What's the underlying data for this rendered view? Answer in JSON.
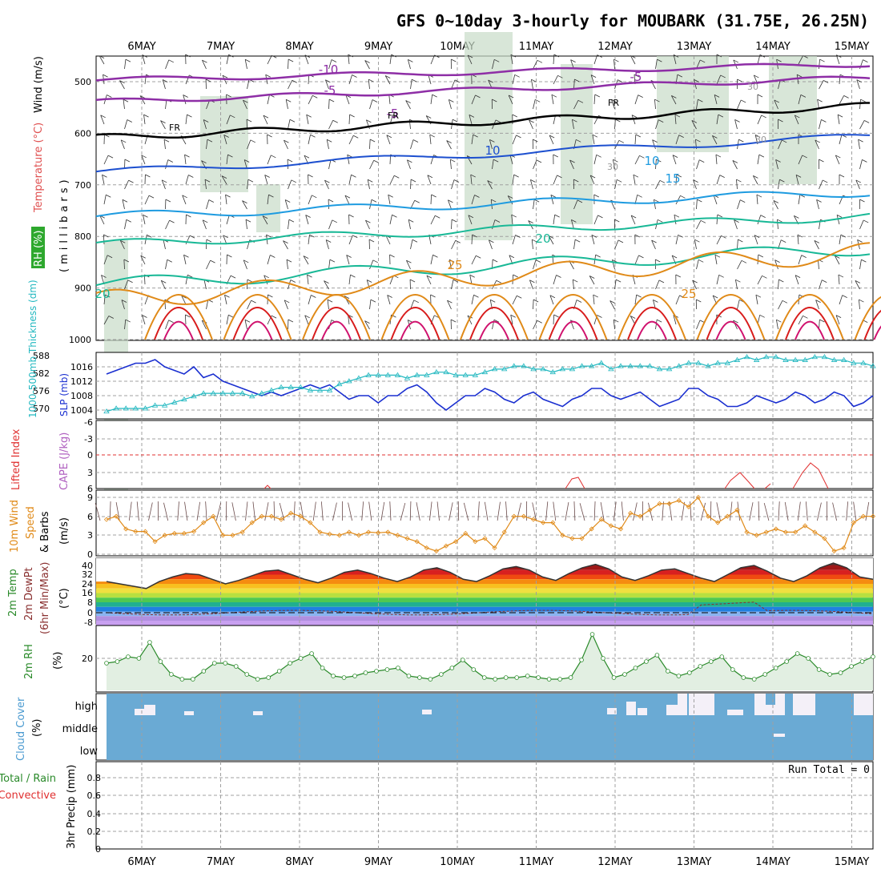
{
  "title": "GFS 0~10day 3-hourly for MOUBARK (31.75E, 26.25N)",
  "dates": [
    "6MAY",
    "7MAY",
    "8MAY",
    "9MAY",
    "10MAY",
    "11MAY",
    "12MAY",
    "13MAY",
    "14MAY",
    "15MAY"
  ],
  "colors": {
    "rh_fill": "#c8dcc8",
    "temp_purple": "#8e2ea6",
    "temp_black": "#000000",
    "temp_blue": "#1c4fcf",
    "temp_lightblue": "#1e9be0",
    "temp_teal": "#18b896",
    "temp_orange": "#e08a18",
    "temp_red": "#d81c1c",
    "temp_magenta": "#d0126e",
    "slp": "#1a2fd0",
    "thickness": "#22b8c0",
    "lifted_index": "#e03030",
    "wind_speed": "#e08a18",
    "rh2m": "#2a8a2a",
    "cloud": "#6aaad4",
    "grid": "#a0a0a0"
  },
  "panels": {
    "profile": {
      "ylabel_rh": "RH (%)",
      "ylabel_temp": "Temperature (°C)",
      "ylabel_wind": "Wind (m/s)",
      "ylabel_units": "(millibars)",
      "yticks": [
        "500",
        "600",
        "700",
        "800",
        "900",
        "1000"
      ],
      "contour_labels": [
        "-10",
        "-5",
        "FR",
        "-5",
        "10",
        "15",
        "20",
        "25",
        "20",
        "25",
        "-5",
        "FR",
        "FR",
        "10",
        "30",
        "30",
        "30"
      ]
    },
    "slp": {
      "ylabel_thick": "1000-500mb Thickness (dm)",
      "ylabel_slp": "SLP (mb)",
      "left_ticks": [
        "588",
        "582",
        "576",
        "570"
      ],
      "right_ticks": [
        "1016",
        "1012",
        "1008",
        "1004"
      ]
    },
    "cape": {
      "ylabel_li": "Lifted Index",
      "ylabel_cape": "CAPE (J/kg)",
      "yticks": [
        "-6",
        "-3",
        "0",
        "3",
        "6"
      ]
    },
    "wind10": {
      "ylabel_1": "10m Wind",
      "ylabel_2": "Speed",
      "ylabel_3": "& Barbs",
      "ylabel_units": "(m/s)",
      "yticks": [
        "9",
        "6",
        "3",
        "0"
      ]
    },
    "temp2m": {
      "ylabel_1": "2m Temp",
      "ylabel_2": "2m DewPt",
      "ylabel_3": "(6hr Min/Max)",
      "ylabel_units": "(°C)",
      "yticks": [
        "40",
        "32",
        "24",
        "16",
        "8",
        "0",
        "-8"
      ]
    },
    "rh2m": {
      "ylabel": "2m RH",
      "ylabel_units": "(%)",
      "yticks": [
        "20"
      ]
    },
    "cloud": {
      "ylabel": "Cloud Cover",
      "ylabel_units": "(%)",
      "levels": [
        "high",
        "middle",
        "low"
      ]
    },
    "precip": {
      "ylabel_1": "Total / Rain",
      "ylabel_2": "Convective",
      "ylabel_3": "3hr Precip (mm)",
      "yticks": [
        "0.8",
        "0.6",
        "0.4",
        "0.2",
        "0"
      ],
      "run_total": "Run Total = 0"
    }
  },
  "chart_data": [
    {
      "type": "line",
      "name": "slp",
      "x_step_hours": 3,
      "values": [
        1014,
        1015,
        1016,
        1017,
        1017,
        1018,
        1016,
        1015,
        1014,
        1016,
        1013,
        1014,
        1012,
        1011,
        1010,
        1009,
        1008,
        1009,
        1008,
        1009,
        1010,
        1011,
        1010,
        1011,
        1009,
        1007,
        1008,
        1008,
        1006,
        1008,
        1008,
        1010,
        1011,
        1009,
        1006,
        1004,
        1006,
        1008,
        1008,
        1010,
        1009,
        1007,
        1006,
        1008,
        1009,
        1007,
        1006,
        1005,
        1007,
        1008,
        1010,
        1010,
        1008,
        1007,
        1008,
        1009,
        1007,
        1005,
        1006,
        1007,
        1010,
        1010,
        1008,
        1007,
        1005,
        1005,
        1006,
        1008,
        1007,
        1006,
        1007,
        1009,
        1008,
        1006,
        1007,
        1009,
        1008,
        1005,
        1006,
        1008
      ]
    },
    {
      "type": "line",
      "name": "thickness",
      "x_step_hours": 3,
      "values": [
        569,
        570,
        570,
        570,
        570,
        571,
        571,
        572,
        573,
        574,
        575,
        575,
        575,
        575,
        575,
        574,
        575,
        576,
        577,
        577,
        577,
        576,
        576,
        576,
        578,
        579,
        580,
        581,
        581,
        581,
        581,
        580,
        581,
        581,
        582,
        582,
        581,
        581,
        581,
        582,
        583,
        583,
        584,
        584,
        583,
        583,
        582,
        583,
        583,
        584,
        584,
        585,
        583,
        584,
        584,
        584,
        584,
        583,
        583,
        584,
        585,
        585,
        584,
        585,
        585,
        586,
        587,
        586,
        587,
        587,
        586,
        586,
        586,
        587,
        587,
        586,
        586,
        585,
        585,
        584
      ]
    },
    {
      "type": "line",
      "name": "wind_speed",
      "x_step_hours": 3,
      "values": [
        5.5,
        6,
        4,
        3.6,
        3.6,
        2,
        3,
        3.3,
        3.3,
        3.6,
        5,
        6,
        3,
        3,
        3.5,
        5,
        6,
        6,
        5.5,
        6.5,
        6,
        5,
        3.5,
        3.2,
        3,
        3.5,
        3,
        3.5,
        3.4,
        3.5,
        3,
        2.5,
        2,
        1,
        0.5,
        1.3,
        2,
        3.3,
        2,
        2.5,
        1,
        3.5,
        6,
        6,
        5.5,
        5,
        5,
        3,
        2.5,
        2.5,
        4,
        5.5,
        4.5,
        4,
        6.5,
        6,
        7,
        8,
        8,
        8.5,
        7.5,
        9,
        6,
        5,
        6,
        7,
        3.5,
        3,
        3.5,
        4,
        3.5,
        3.5,
        4.5,
        3.5,
        2.5,
        0.5,
        1,
        5,
        6,
        6
      ]
    },
    {
      "type": "line",
      "name": "rh2m",
      "x_step_hours": 3,
      "values": [
        17,
        18,
        21,
        20,
        30,
        18,
        10,
        7,
        7,
        12,
        17,
        17,
        15,
        10,
        7,
        8,
        12,
        17,
        20,
        23,
        14,
        9,
        8,
        9,
        11,
        12,
        13,
        14,
        9,
        8,
        7,
        10,
        14,
        19,
        13,
        8,
        7,
        8,
        8,
        9,
        8,
        7,
        7,
        8,
        19,
        35,
        20,
        8,
        10,
        14,
        18,
        22,
        12,
        9,
        11,
        15,
        18,
        21,
        13,
        8,
        7,
        10,
        14,
        18,
        23,
        20,
        13,
        10,
        11,
        15,
        18,
        21
      ]
    },
    {
      "type": "line",
      "name": "temp2m",
      "x_step_hours": 3,
      "values": [
        26,
        24,
        22,
        20,
        26,
        30,
        33,
        32,
        28,
        24,
        27,
        31,
        35,
        36,
        32,
        28,
        25,
        29,
        34,
        36,
        33,
        29,
        26,
        30,
        36,
        38,
        34,
        28,
        26,
        31,
        37,
        39,
        36,
        30,
        27,
        33,
        38,
        41,
        37,
        30,
        27,
        31,
        36,
        37,
        33,
        29,
        26,
        32,
        38,
        40,
        35,
        29,
        26,
        31,
        38,
        42,
        38,
        30,
        28
      ]
    }
  ]
}
